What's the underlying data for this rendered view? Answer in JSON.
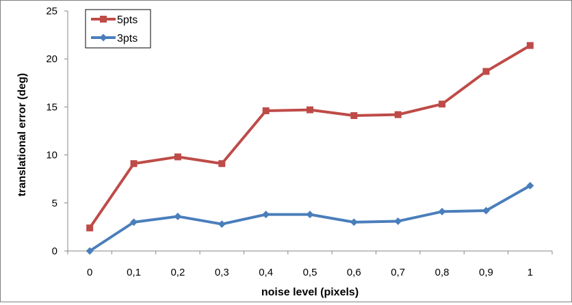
{
  "chart_data": {
    "type": "line",
    "title": "",
    "xlabel": "noise level (pixels)",
    "ylabel": "translational error (deg)",
    "categories": [
      "0",
      "0,1",
      "0,2",
      "0,3",
      "0,4",
      "0,5",
      "0,6",
      "0,7",
      "0,8",
      "0,9",
      "1"
    ],
    "ylim": [
      0,
      25
    ],
    "yticks": [
      "0",
      "5",
      "10",
      "15",
      "20",
      "25"
    ],
    "grid": false,
    "legend_position": "top-left",
    "series": [
      {
        "name": "5pts",
        "color": "#be4b48",
        "marker": "square",
        "values": [
          2.4,
          9.1,
          9.8,
          9.1,
          14.6,
          14.7,
          14.1,
          14.2,
          15.3,
          18.7,
          21.4
        ]
      },
      {
        "name": "3pts",
        "color": "#4a7ebb",
        "marker": "diamond",
        "values": [
          0.0,
          3.0,
          3.6,
          2.8,
          3.8,
          3.8,
          3.0,
          3.1,
          4.1,
          4.2,
          6.8
        ]
      }
    ]
  }
}
